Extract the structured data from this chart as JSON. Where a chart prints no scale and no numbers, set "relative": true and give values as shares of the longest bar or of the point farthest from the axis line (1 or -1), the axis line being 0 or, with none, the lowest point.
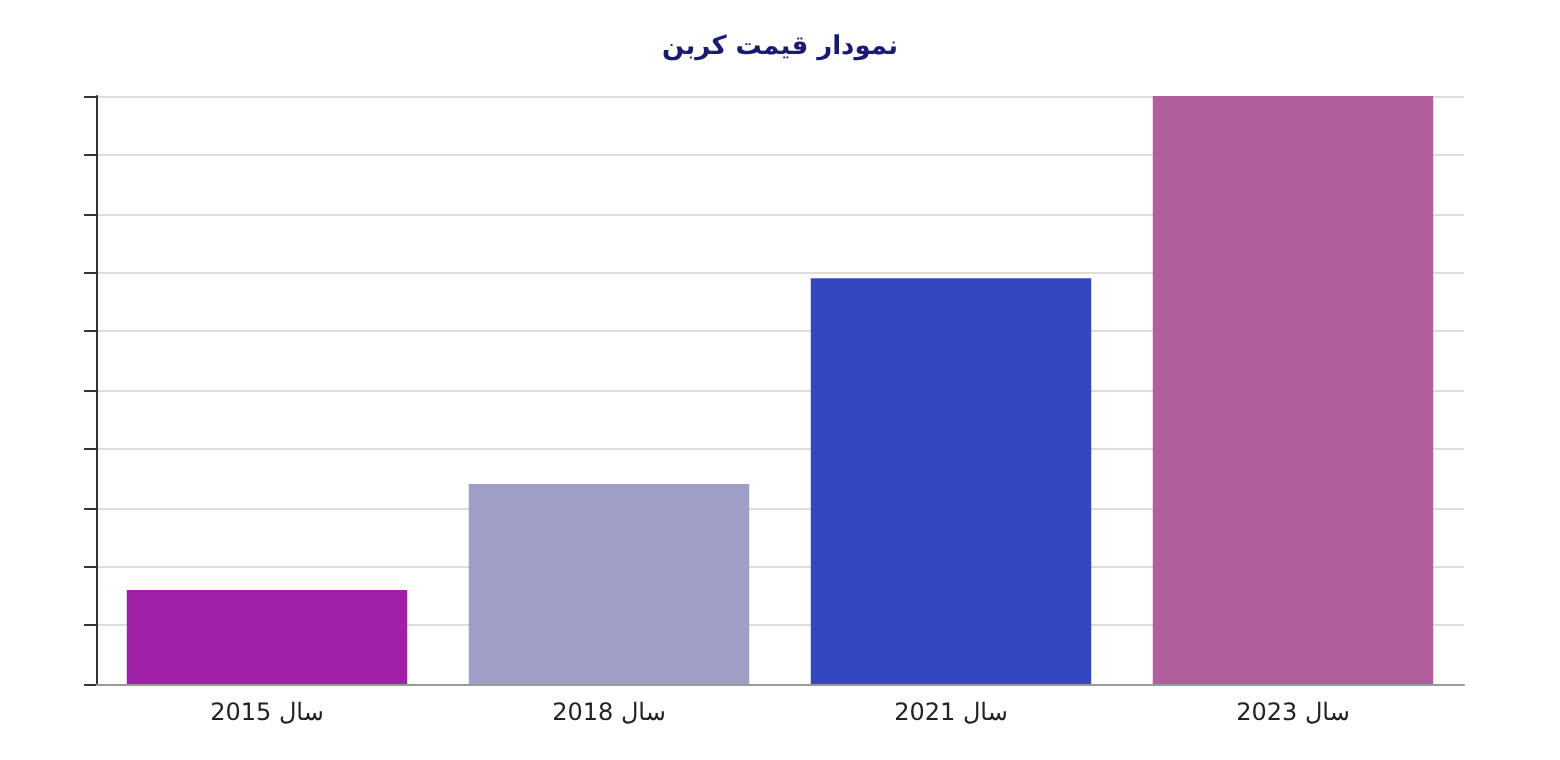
{
  "chart_data": {
    "type": "bar",
    "title": "نمودار قیمت کربن",
    "categories": [
      "سال 2015",
      "سال 2018",
      "سال 2021",
      "سال 2023"
    ],
    "values": [
      0.16,
      0.34,
      0.69,
      1
    ],
    "colors": [
      "#a020a8",
      "#9e9ec6",
      "#3446c0",
      "#b05e9c"
    ],
    "relative": true,
    "grid": "y"
  }
}
